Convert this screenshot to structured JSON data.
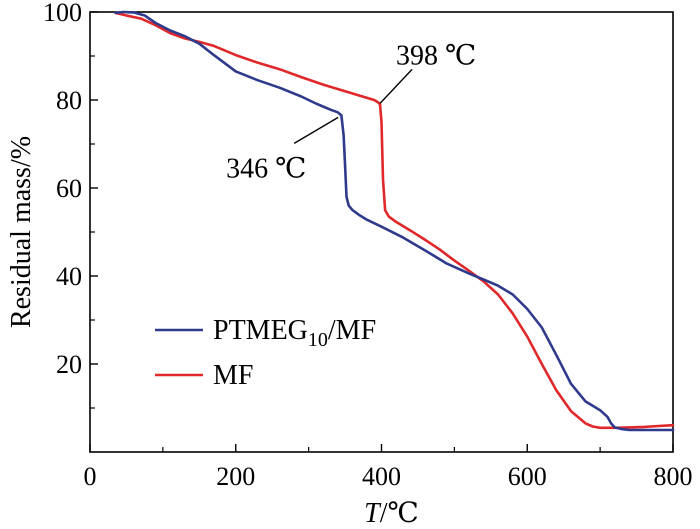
{
  "chart_data": {
    "type": "line",
    "xlabel_italic": "T",
    "xlabel_unit": "/℃",
    "ylabel": "Residual mass/%",
    "xlim": [
      0,
      800
    ],
    "ylim": [
      0,
      100
    ],
    "xticks": [
      0,
      200,
      400,
      600,
      800
    ],
    "yticks": [
      20,
      40,
      60,
      80,
      100
    ],
    "grid": false,
    "legend_position": "bottom-left",
    "series": [
      {
        "name_base": "PTMEG",
        "name_sub": "10",
        "name_suffix": "/MF",
        "color": "#2e3a8c",
        "x": [
          35,
          45,
          60,
          75,
          90,
          110,
          130,
          150,
          170,
          200,
          230,
          260,
          290,
          310,
          330,
          340,
          345,
          348,
          350,
          352,
          355,
          360,
          370,
          380,
          400,
          430,
          460,
          490,
          520,
          540,
          560,
          580,
          600,
          620,
          640,
          660,
          680,
          700,
          710,
          715,
          720,
          730,
          740,
          760,
          780,
          800
        ],
        "y": [
          99.8,
          100,
          99.9,
          99.2,
          97.5,
          95.8,
          94.5,
          92.8,
          90.2,
          86.5,
          84.5,
          82.8,
          80.8,
          79.2,
          77.8,
          77.2,
          76.5,
          72,
          65,
          58,
          56,
          55,
          53.8,
          52.8,
          51.2,
          48.7,
          45.8,
          42.8,
          40.6,
          39.2,
          37.8,
          35.8,
          32.5,
          28.3,
          22,
          15.5,
          11.5,
          9.5,
          8,
          6.5,
          5.6,
          5.2,
          5,
          5,
          5,
          5
        ]
      },
      {
        "name": "MF",
        "color": "#e0282a",
        "x": [
          35,
          50,
          70,
          90,
          110,
          130,
          150,
          170,
          200,
          230,
          260,
          290,
          320,
          350,
          370,
          390,
          395,
          398,
          400,
          402,
          405,
          410,
          420,
          440,
          460,
          480,
          500,
          520,
          540,
          560,
          580,
          600,
          620,
          640,
          660,
          680,
          690,
          700,
          720,
          740,
          760,
          780,
          800
        ],
        "y": [
          99.8,
          99.2,
          98.5,
          97,
          95.2,
          94,
          93.2,
          92.3,
          90.2,
          88.5,
          87,
          85.2,
          83.5,
          82,
          81,
          80,
          79.5,
          79,
          75,
          62,
          55,
          53.5,
          52.3,
          50.3,
          48.2,
          46,
          43.5,
          41.2,
          38.8,
          35.8,
          31.5,
          26.2,
          20,
          14,
          9.3,
          6.5,
          5.8,
          5.5,
          5.5,
          5.6,
          5.7,
          5.9,
          6.1
        ]
      }
    ],
    "annotations": [
      {
        "text": "398 ℃",
        "target_x": 398,
        "target_y": 79
      },
      {
        "text": "346 ℃",
        "target_x": 346,
        "target_y": 76.5
      }
    ]
  }
}
